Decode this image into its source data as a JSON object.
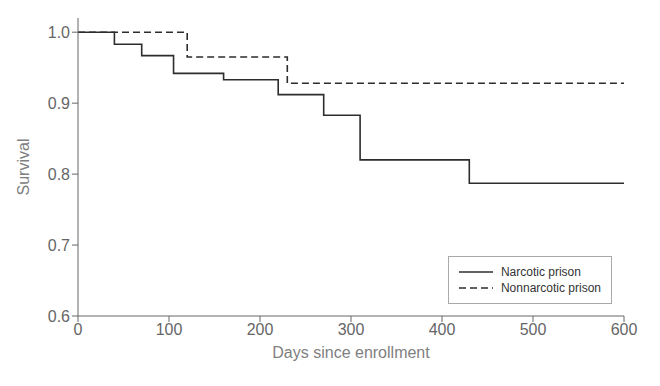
{
  "chart_data": {
    "type": "step",
    "xlabel": "Days since enrollment",
    "ylabel": "Survival",
    "xlim": [
      0,
      600
    ],
    "ylim": [
      0.6,
      1.02
    ],
    "xticks": [
      0,
      100,
      200,
      300,
      400,
      500,
      600
    ],
    "yticks": [
      0.6,
      0.7,
      0.8,
      0.9,
      {
        "value": 1.0,
        "label": "1.0"
      }
    ],
    "grid": false,
    "legend": "lower right",
    "series": [
      {
        "name": "Narcotic prison",
        "color": "#2d2d2d",
        "line_style": "solid",
        "x": [
          0,
          40,
          40,
          70,
          70,
          105,
          105,
          160,
          160,
          220,
          220,
          270,
          270,
          310,
          310,
          430,
          430,
          600
        ],
        "values": [
          1.0,
          1.0,
          0.983,
          0.983,
          0.967,
          0.967,
          0.942,
          0.942,
          0.933,
          0.933,
          0.912,
          0.912,
          0.883,
          0.883,
          0.82,
          0.82,
          0.787,
          0.787
        ]
      },
      {
        "name": "Nonnarcotic prison",
        "color": "#2d2d2d",
        "line_style": "dashed",
        "x": [
          0,
          120,
          120,
          230,
          230,
          600
        ],
        "values": [
          1.0,
          1.0,
          0.965,
          0.965,
          0.928,
          0.928
        ]
      }
    ]
  }
}
